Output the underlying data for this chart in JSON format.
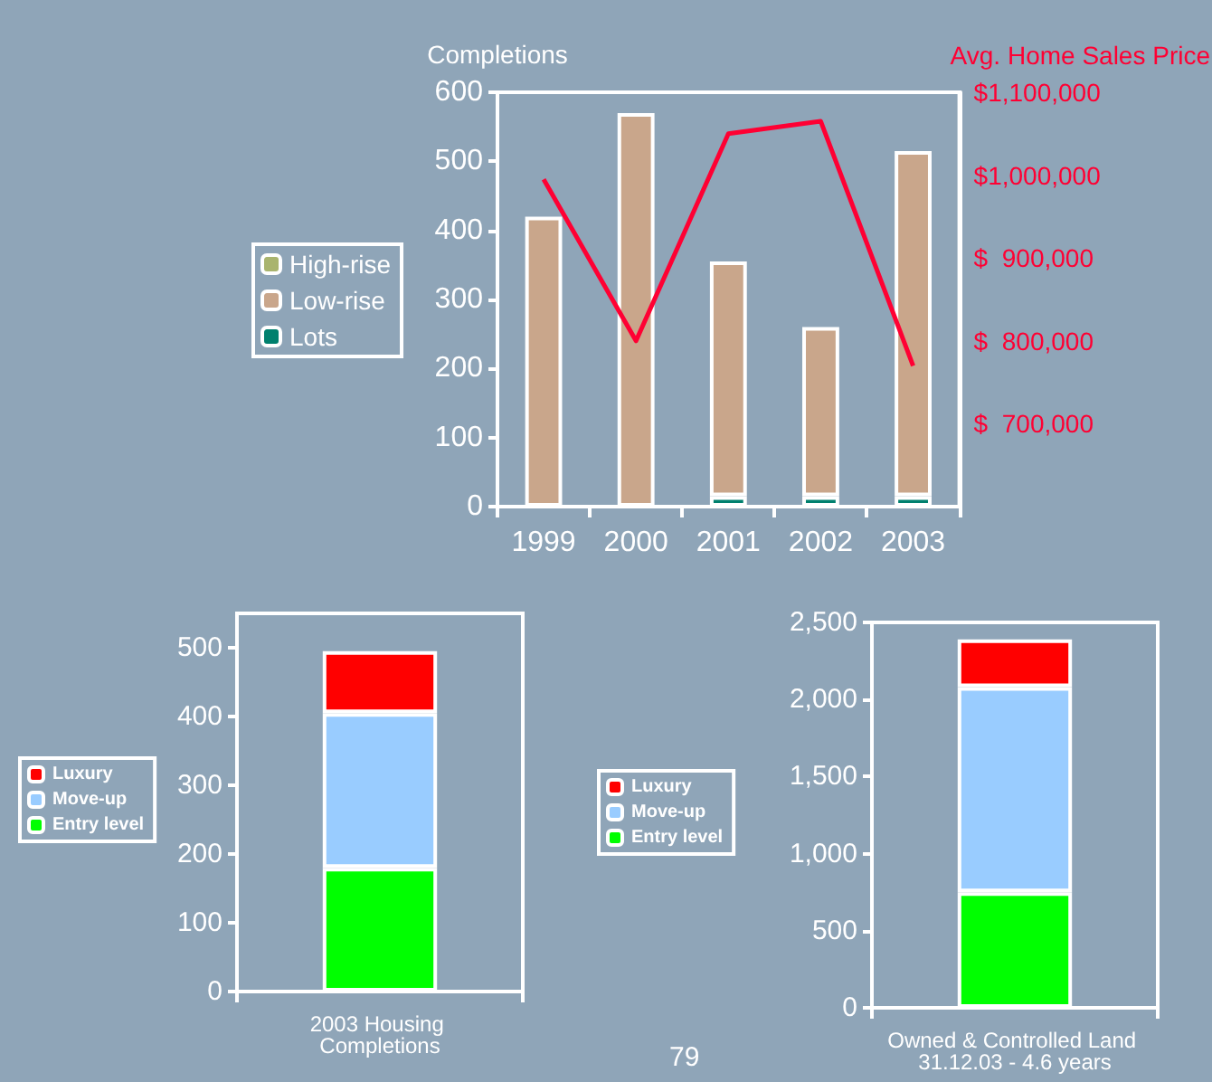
{
  "chart_data": [
    {
      "type": "bar",
      "stacked": true,
      "categories": [
        "1999",
        "2000",
        "2001",
        "2002",
        "2003"
      ],
      "ylabel": "Completions",
      "y2label": "Avg. Home Sales Price",
      "series": [
        {
          "name": "Lots",
          "color": "#00806e",
          "values": [
            null,
            null,
            15,
            15,
            15
          ]
        },
        {
          "name": "Low-rise",
          "color": "#c9a68b",
          "values": [
            420,
            570,
            340,
            245,
            500
          ]
        },
        {
          "name": "High-rise",
          "color": "#a9b46e",
          "values": [
            null,
            null,
            null,
            null,
            null
          ]
        },
        {
          "type": "line",
          "axis": "y2",
          "color": "#ff0033",
          "values": [
            995000,
            800000,
            1050000,
            1065000,
            770000
          ]
        }
      ],
      "ylim": [
        0,
        600
      ],
      "yticks": [
        0,
        100,
        200,
        300,
        400,
        500,
        600
      ],
      "y2lim": [
        600000,
        1100000
      ],
      "y2ticks": [
        {
          "value": 700000,
          "label": "$  700,000"
        },
        {
          "value": 800000,
          "label": "$  800,000"
        },
        {
          "value": 900000,
          "label": "$  900,000"
        },
        {
          "value": 1000000,
          "label": "$1,000,000"
        },
        {
          "value": 1100000,
          "label": "$1,100,000"
        }
      ],
      "legend": "left",
      "grid": false,
      "marker": "none"
    },
    {
      "type": "bar",
      "stacked": true,
      "categories": [
        "2003 Housing Completions"
      ],
      "series": [
        {
          "name": "Entry level",
          "color": "#00ff00",
          "values": [
            180
          ]
        },
        {
          "name": "Move-up",
          "color": "#99ccff",
          "values": [
            225
          ]
        },
        {
          "name": "Luxury",
          "color": "#ff0000",
          "values": [
            90
          ]
        }
      ],
      "ylim": [
        0,
        550
      ],
      "yticks": [
        0,
        100,
        200,
        300,
        400,
        500
      ],
      "legend": "left",
      "grid": false
    },
    {
      "type": "bar",
      "stacked": true,
      "categories": [
        "Owned & Controlled Land 31.12.03 - 4.6 years"
      ],
      "series": [
        {
          "name": "Entry level",
          "color": "#00ff00",
          "values": [
            750
          ]
        },
        {
          "name": "Move-up",
          "color": "#99ccff",
          "values": [
            1330
          ]
        },
        {
          "name": "Luxury",
          "color": "#ff0000",
          "values": [
            310
          ]
        }
      ],
      "ylim": [
        0,
        2500
      ],
      "yticks": [
        0,
        {
          "value": 500,
          "label": "500"
        },
        {
          "value": 1000,
          "label": "1,000"
        },
        {
          "value": 1500,
          "label": "1,500"
        },
        {
          "value": 2000,
          "label": "2,000"
        },
        {
          "value": 2500,
          "label": "2,500"
        }
      ],
      "legend": "left",
      "grid": false,
      "annotations": [
        "79"
      ]
    }
  ]
}
